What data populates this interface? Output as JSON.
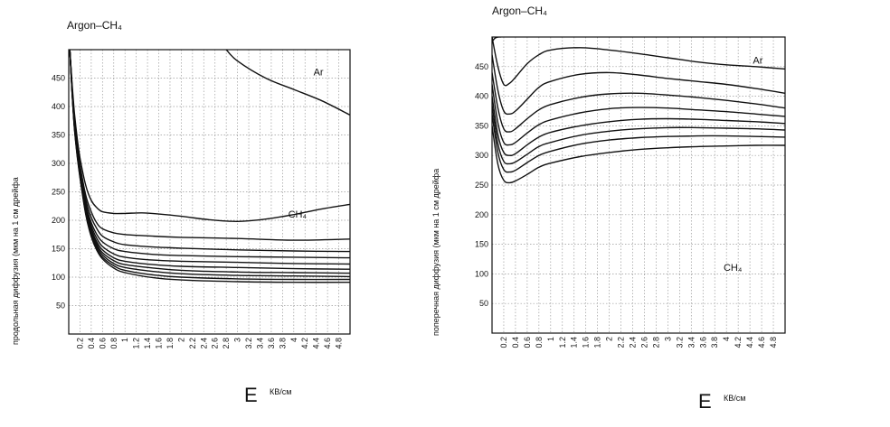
{
  "chart_data": [
    {
      "type": "line",
      "title": "Argon–CH₄",
      "ylabel": "продольная диффузия (мкм на 1 см дрейфа",
      "xlabel": "E",
      "xunit": "КВ/см",
      "xlim": [
        0,
        5.0
      ],
      "ylim": [
        0,
        500
      ],
      "grid": true,
      "y_ticks": [
        "50",
        "100",
        "150",
        "200",
        "250",
        "300",
        "350",
        "400",
        "450"
      ],
      "x_ticks": [
        "0.2",
        "0.4",
        "0.6",
        "0.8",
        "1",
        "1.2",
        "1.4",
        "1.6",
        "1.8",
        "2",
        "2.2",
        "2.4",
        "2.6",
        "2.8",
        "3",
        "3.2",
        "3.4",
        "3.6",
        "3.8",
        "4",
        "4.2",
        "4.4",
        "4.6",
        "4.8"
      ],
      "annotations": [
        {
          "text": "Ar",
          "x": 4.35,
          "y": 455
        },
        {
          "text": "CH₄",
          "x": 3.9,
          "y": 205
        }
      ],
      "series": [
        {
          "x": [
            2.8,
            3.0,
            3.5,
            4.0,
            4.5,
            5.0
          ],
          "y": [
            500,
            480,
            450,
            430,
            410,
            385
          ]
        },
        {
          "x": [
            0.02,
            0.06,
            0.1,
            0.15,
            0.2,
            0.3,
            0.4,
            0.5,
            0.6,
            0.8,
            1.0,
            1.3,
            1.6,
            2.0,
            2.5,
            3.0,
            3.5,
            4.0,
            4.5,
            5.0
          ],
          "y": [
            500,
            440,
            390,
            345,
            310,
            262,
            235,
            222,
            215,
            212,
            212,
            213,
            211,
            207,
            201,
            198,
            202,
            210,
            220,
            228
          ]
        },
        {
          "x": [
            0.02,
            0.06,
            0.1,
            0.15,
            0.2,
            0.3,
            0.4,
            0.5,
            0.6,
            0.8,
            1.0,
            1.5,
            2.0,
            3.0,
            4.0,
            5.0
          ],
          "y": [
            500,
            435,
            380,
            335,
            298,
            245,
            215,
            195,
            185,
            178,
            175,
            172,
            170,
            168,
            165,
            167
          ]
        },
        {
          "x": [
            0.02,
            0.06,
            0.1,
            0.15,
            0.2,
            0.3,
            0.4,
            0.5,
            0.6,
            0.8,
            1.0,
            1.5,
            2.0,
            3.0,
            4.0,
            5.0
          ],
          "y": [
            500,
            432,
            375,
            330,
            292,
            237,
            205,
            185,
            172,
            162,
            157,
            153,
            151,
            148,
            146,
            145
          ]
        },
        {
          "x": [
            0.02,
            0.06,
            0.1,
            0.15,
            0.2,
            0.3,
            0.4,
            0.5,
            0.6,
            0.8,
            1.0,
            1.5,
            2.0,
            3.0,
            4.0,
            5.0
          ],
          "y": [
            500,
            430,
            372,
            326,
            288,
            230,
            196,
            175,
            162,
            150,
            145,
            140,
            138,
            136,
            135,
            134
          ]
        },
        {
          "x": [
            0.02,
            0.06,
            0.1,
            0.15,
            0.2,
            0.3,
            0.4,
            0.5,
            0.6,
            0.8,
            1.0,
            1.5,
            2.0,
            3.0,
            4.0,
            5.0
          ],
          "y": [
            500,
            428,
            370,
            323,
            285,
            225,
            190,
            168,
            154,
            141,
            135,
            130,
            128,
            126,
            124,
            123
          ]
        },
        {
          "x": [
            0.02,
            0.06,
            0.1,
            0.15,
            0.2,
            0.3,
            0.4,
            0.5,
            0.6,
            0.8,
            1.0,
            1.5,
            2.0,
            3.0,
            4.0,
            5.0
          ],
          "y": [
            500,
            427,
            368,
            321,
            283,
            221,
            185,
            162,
            148,
            134,
            128,
            122,
            119,
            117,
            115,
            114
          ]
        },
        {
          "x": [
            0.02,
            0.06,
            0.1,
            0.15,
            0.2,
            0.3,
            0.4,
            0.5,
            0.6,
            0.8,
            1.0,
            1.5,
            2.0,
            3.0,
            4.0,
            5.0
          ],
          "y": [
            500,
            426,
            366,
            319,
            281,
            218,
            181,
            158,
            143,
            129,
            122,
            116,
            112,
            109,
            108,
            107
          ]
        },
        {
          "x": [
            0.02,
            0.06,
            0.1,
            0.15,
            0.2,
            0.3,
            0.4,
            0.5,
            0.6,
            0.8,
            1.0,
            1.5,
            2.0,
            3.0,
            4.0,
            5.0
          ],
          "y": [
            500,
            425,
            365,
            317,
            279,
            215,
            177,
            154,
            139,
            124,
            117,
            110,
            106,
            103,
            102,
            101
          ]
        },
        {
          "x": [
            0.02,
            0.06,
            0.1,
            0.15,
            0.2,
            0.3,
            0.4,
            0.5,
            0.6,
            0.8,
            1.0,
            1.5,
            2.0,
            3.0,
            4.0,
            5.0
          ],
          "y": [
            500,
            424,
            364,
            315,
            277,
            213,
            174,
            150,
            135,
            120,
            112,
            104,
            100,
            97,
            96,
            96
          ]
        },
        {
          "x": [
            0.02,
            0.06,
            0.1,
            0.15,
            0.2,
            0.3,
            0.4,
            0.5,
            0.6,
            0.8,
            1.0,
            1.5,
            2.0,
            3.0,
            4.0,
            5.0
          ],
          "y": [
            500,
            423,
            362,
            313,
            275,
            211,
            171,
            147,
            132,
            116,
            108,
            99,
            95,
            92,
            91,
            91
          ]
        }
      ]
    },
    {
      "type": "line",
      "title": "Argon–CH₄",
      "ylabel": "поперечная диффузия (мкм на 1 см дрейфа",
      "xlabel": "E",
      "xunit": "КВ/см",
      "xlim": [
        0,
        5.0
      ],
      "ylim": [
        0,
        500
      ],
      "grid": true,
      "y_ticks": [
        "50",
        "100",
        "150",
        "200",
        "250",
        "300",
        "350",
        "400",
        "450"
      ],
      "x_ticks": [
        "0.2",
        "0.4",
        "0.6",
        "0.8",
        "1",
        "1.2",
        "1.4",
        "1.6",
        "1.8",
        "2",
        "2.2",
        "2.4",
        "2.6",
        "2.8",
        "3",
        "3.2",
        "3.4",
        "3.6",
        "3.8",
        "4",
        "4.2",
        "4.4",
        "4.6",
        "4.8"
      ],
      "annotations": [
        {
          "text": "Ar",
          "x": 4.45,
          "y": 455
        },
        {
          "text": "CH₄",
          "x": 3.95,
          "y": 105
        }
      ],
      "series": [
        {
          "x": [
            0.0,
            0.05,
            0.1,
            0.15
          ],
          "y": [
            492,
            498,
            500,
            500
          ]
        },
        {
          "x": [
            0.0,
            0.1,
            0.2,
            0.3,
            0.4,
            0.6,
            0.8,
            1.0,
            1.5,
            2.0,
            2.5,
            3.0,
            3.5,
            4.0,
            4.5,
            5.0
          ],
          "y": [
            500,
            450,
            420,
            422,
            432,
            455,
            470,
            478,
            482,
            478,
            472,
            465,
            458,
            453,
            450,
            446
          ]
        },
        {
          "x": [
            0.0,
            0.1,
            0.2,
            0.3,
            0.4,
            0.6,
            0.8,
            1.0,
            1.5,
            2.0,
            2.5,
            3.0,
            3.5,
            4.0,
            4.5,
            5.0
          ],
          "y": [
            470,
            410,
            375,
            370,
            375,
            395,
            415,
            425,
            437,
            440,
            436,
            430,
            425,
            420,
            413,
            405
          ]
        },
        {
          "x": [
            0.0,
            0.1,
            0.2,
            0.3,
            0.4,
            0.6,
            0.8,
            1.0,
            1.5,
            2.0,
            2.5,
            3.0,
            3.5,
            4.0,
            4.5,
            5.0
          ],
          "y": [
            440,
            380,
            345,
            340,
            345,
            362,
            377,
            386,
            398,
            404,
            405,
            402,
            398,
            393,
            387,
            380
          ]
        },
        {
          "x": [
            0.0,
            0.1,
            0.2,
            0.3,
            0.4,
            0.6,
            0.8,
            1.0,
            1.5,
            2.0,
            2.5,
            3.0,
            3.5,
            4.0,
            4.5,
            5.0
          ],
          "y": [
            420,
            355,
            322,
            318,
            322,
            338,
            352,
            360,
            372,
            379,
            381,
            380,
            377,
            374,
            370,
            366
          ]
        },
        {
          "x": [
            0.0,
            0.1,
            0.2,
            0.3,
            0.4,
            0.6,
            0.8,
            1.0,
            1.5,
            2.0,
            2.5,
            3.0,
            3.5,
            4.0,
            4.5,
            5.0
          ],
          "y": [
            400,
            335,
            305,
            300,
            303,
            318,
            331,
            339,
            350,
            357,
            361,
            362,
            361,
            359,
            357,
            354
          ]
        },
        {
          "x": [
            0.0,
            0.1,
            0.2,
            0.3,
            0.4,
            0.6,
            0.8,
            1.0,
            1.5,
            2.0,
            2.5,
            3.0,
            3.5,
            4.0,
            4.5,
            5.0
          ],
          "y": [
            385,
            320,
            290,
            286,
            289,
            302,
            315,
            322,
            334,
            341,
            345,
            347,
            347,
            346,
            345,
            343
          ]
        },
        {
          "x": [
            0.0,
            0.1,
            0.2,
            0.3,
            0.4,
            0.6,
            0.8,
            1.0,
            1.5,
            2.0,
            2.5,
            3.0,
            3.5,
            4.0,
            4.5,
            5.0
          ],
          "y": [
            370,
            305,
            276,
            272,
            275,
            288,
            300,
            307,
            319,
            326,
            330,
            332,
            333,
            333,
            332,
            331
          ]
        },
        {
          "x": [
            0.0,
            0.1,
            0.2,
            0.3,
            0.4,
            0.6,
            0.8,
            1.0,
            1.5,
            2.0,
            2.5,
            3.0,
            3.5,
            4.0,
            4.5,
            5.0
          ],
          "y": [
            350,
            285,
            258,
            254,
            257,
            268,
            280,
            287,
            298,
            305,
            310,
            313,
            315,
            316,
            317,
            317
          ]
        }
      ]
    }
  ]
}
